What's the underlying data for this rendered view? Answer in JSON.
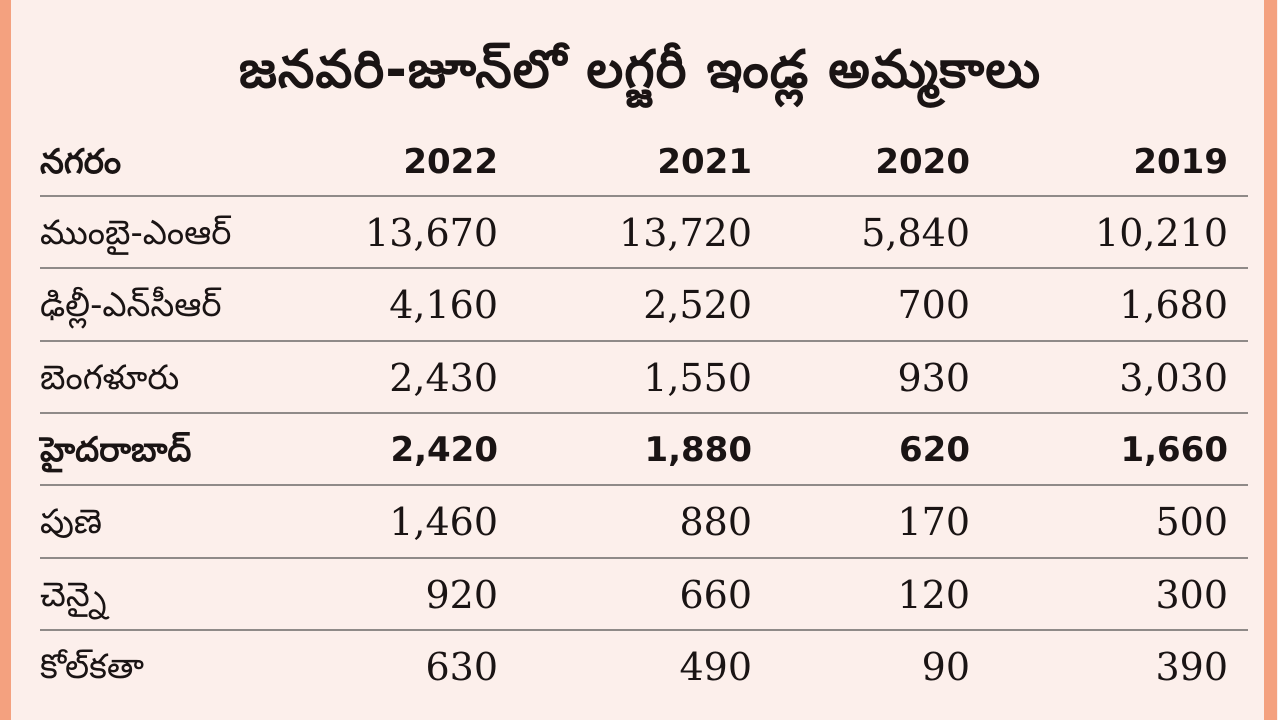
{
  "chart_data": {
    "type": "table",
    "title": "జనవరి-జూన్‌లో లగ్జరీ ఇండ్ల అమ్మకాలు",
    "columns": [
      "నగరం",
      "2022",
      "2021",
      "2020",
      "2019"
    ],
    "rows": [
      {
        "city": "ముంబై-ఎంఆర్",
        "values": [
          "13,670",
          "13,720",
          "5,840",
          "10,210"
        ],
        "bold": false
      },
      {
        "city": "ఢిల్లీ-ఎన్‌సీఆర్",
        "values": [
          "4,160",
          "2,520",
          "700",
          "1,680"
        ],
        "bold": false
      },
      {
        "city": "బెంగళూరు",
        "values": [
          "2,430",
          "1,550",
          "930",
          "3,030"
        ],
        "bold": false
      },
      {
        "city": "హైదరాబాద్",
        "values": [
          "2,420",
          "1,880",
          "620",
          "1,660"
        ],
        "bold": true
      },
      {
        "city": "పుణె",
        "values": [
          "1,460",
          "880",
          "170",
          "500"
        ],
        "bold": false
      },
      {
        "city": "చెన్నై",
        "values": [
          "920",
          "660",
          "120",
          "300"
        ],
        "bold": false
      },
      {
        "city": "కోల్‌కతా",
        "values": [
          "630",
          "490",
          "90",
          "390"
        ],
        "bold": false
      }
    ]
  },
  "colors": {
    "background": "#fcefeb",
    "accent": "#f4a17f"
  }
}
